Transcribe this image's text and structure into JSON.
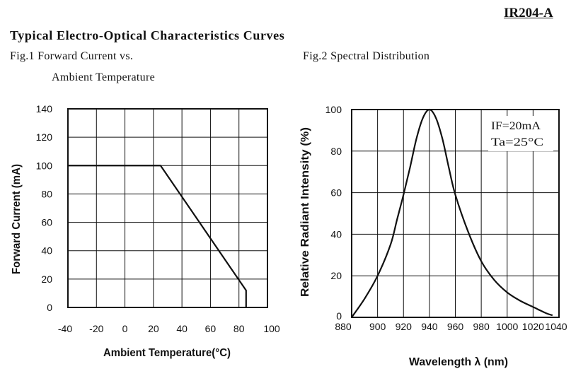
{
  "header": {
    "doc_id": "IR204-A",
    "title": "Typical Electro-Optical Characteristics Curves"
  },
  "chart_data": [
    {
      "type": "line",
      "title_line1": "Fig.1 Forward Current vs.",
      "title_line2": "Ambient Temperature",
      "xlabel": "Ambient Temperature(°C)",
      "ylabel": "Forward Current (mA)",
      "xlim": [
        -40,
        100
      ],
      "ylim": [
        0,
        140
      ],
      "x_tick_labels": [
        "-40",
        "-20",
        "0",
        "20",
        "40",
        "60",
        "80",
        "100"
      ],
      "y_tick_labels": [
        "0",
        "20",
        "40",
        "60",
        "80",
        "100",
        "120",
        "140"
      ],
      "grid": true,
      "series": [
        {
          "x": [
            -40,
            25,
            85,
            85
          ],
          "y": [
            100,
            100,
            12,
            0
          ]
        }
      ]
    },
    {
      "type": "line",
      "title": "Fig.2 Spectral Distribution",
      "xlabel": "Wavelength λ (nm)",
      "ylabel": "Relative Radiant Intensity (%)",
      "xlim": [
        880,
        1040
      ],
      "ylim": [
        0,
        100
      ],
      "x_tick_labels": [
        "880",
        "900",
        "920",
        "940",
        "960",
        "980",
        "1000",
        "1020",
        "1040"
      ],
      "y_tick_labels": [
        "0",
        "20",
        "40",
        "60",
        "80",
        "100"
      ],
      "grid": true,
      "annotations": [
        "IF=20mA",
        "Ta=25°C"
      ],
      "series": [
        {
          "x": [
            880,
            890,
            900,
            910,
            915,
            920,
            925,
            930,
            935,
            940,
            945,
            950,
            955,
            960,
            970,
            980,
            990,
            1000,
            1010,
            1020,
            1030,
            1035
          ],
          "y": [
            0,
            9,
            20,
            35,
            47,
            59,
            72,
            86,
            96,
            100,
            96,
            86,
            72,
            59,
            41,
            27,
            18,
            12,
            8,
            5,
            2,
            1
          ]
        }
      ]
    }
  ]
}
